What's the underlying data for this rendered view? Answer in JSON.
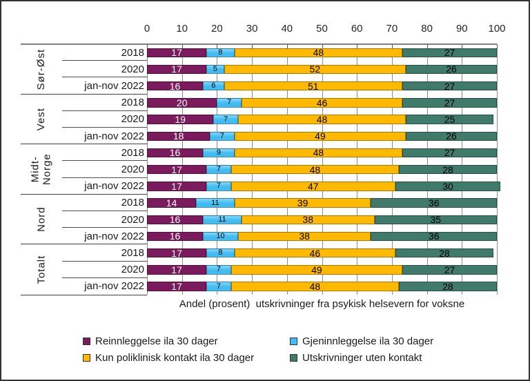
{
  "chart_data": {
    "type": "bar",
    "orientation": "horizontal",
    "stacked": true,
    "xlabel": "Andel (prosent)  utskrivninger fra psykisk helsevern for voksne",
    "axis": {
      "min": 0,
      "max": 100,
      "ticks": [
        0,
        10,
        20,
        30,
        40,
        50,
        60,
        70,
        80,
        90,
        100
      ],
      "position": "top",
      "grid": true
    },
    "series": [
      {
        "key": "reinnleggelse",
        "name": "Reinnleggelse ila 30 dager",
        "color": "#7B1A5C",
        "label_color": "#FFFFFF"
      },
      {
        "key": "gjeninnleggelse",
        "name": "Gjeninnleggelse ila 30 dager",
        "color": "#3FBCF2",
        "label_color": "#000000"
      },
      {
        "key": "kun-poliklinisk",
        "name": "Kun poliklinisk kontakt ila 30 dager",
        "color": "#FFB900",
        "label_color": "#000000"
      },
      {
        "key": "uten-kontakt",
        "name": "Utskrivninger uten kontakt",
        "color": "#3F7A6A",
        "label_color": "#000000"
      }
    ],
    "groups": [
      {
        "region": "Sør-Øst",
        "rows": [
          {
            "label": "2018",
            "values": [
              17,
              8,
              48,
              27
            ]
          },
          {
            "label": "2020",
            "values": [
              17,
              5,
              52,
              26
            ]
          },
          {
            "label": "jan-nov 2022",
            "values": [
              16,
              6,
              51,
              27
            ]
          }
        ]
      },
      {
        "region": "Vest",
        "rows": [
          {
            "label": "2018",
            "values": [
              20,
              7,
              46,
              27
            ]
          },
          {
            "label": "2020",
            "values": [
              19,
              7,
              48,
              25
            ]
          },
          {
            "label": "jan-nov 2022",
            "values": [
              18,
              7,
              49,
              26
            ]
          }
        ]
      },
      {
        "region": "Midt-\nNorge",
        "rows": [
          {
            "label": "2018",
            "values": [
              16,
              9,
              48,
              27
            ]
          },
          {
            "label": "2020",
            "values": [
              17,
              7,
              48,
              28
            ]
          },
          {
            "label": "jan-nov 2022",
            "values": [
              17,
              7,
              47,
              30
            ]
          }
        ]
      },
      {
        "region": "Nord",
        "rows": [
          {
            "label": "2018",
            "values": [
              14,
              11,
              39,
              36
            ]
          },
          {
            "label": "2020",
            "values": [
              16,
              11,
              38,
              35
            ]
          },
          {
            "label": "jan-nov 2022",
            "values": [
              16,
              10,
              38,
              36
            ]
          }
        ]
      },
      {
        "region": "Totalt",
        "rows": [
          {
            "label": "2018",
            "values": [
              17,
              8,
              46,
              28
            ]
          },
          {
            "label": "2020",
            "values": [
              17,
              7,
              49,
              27
            ]
          },
          {
            "label": "jan-nov 2022",
            "values": [
              17,
              7,
              48,
              28
            ]
          }
        ]
      }
    ],
    "legend": {
      "position": "bottom",
      "columns": 2
    }
  }
}
